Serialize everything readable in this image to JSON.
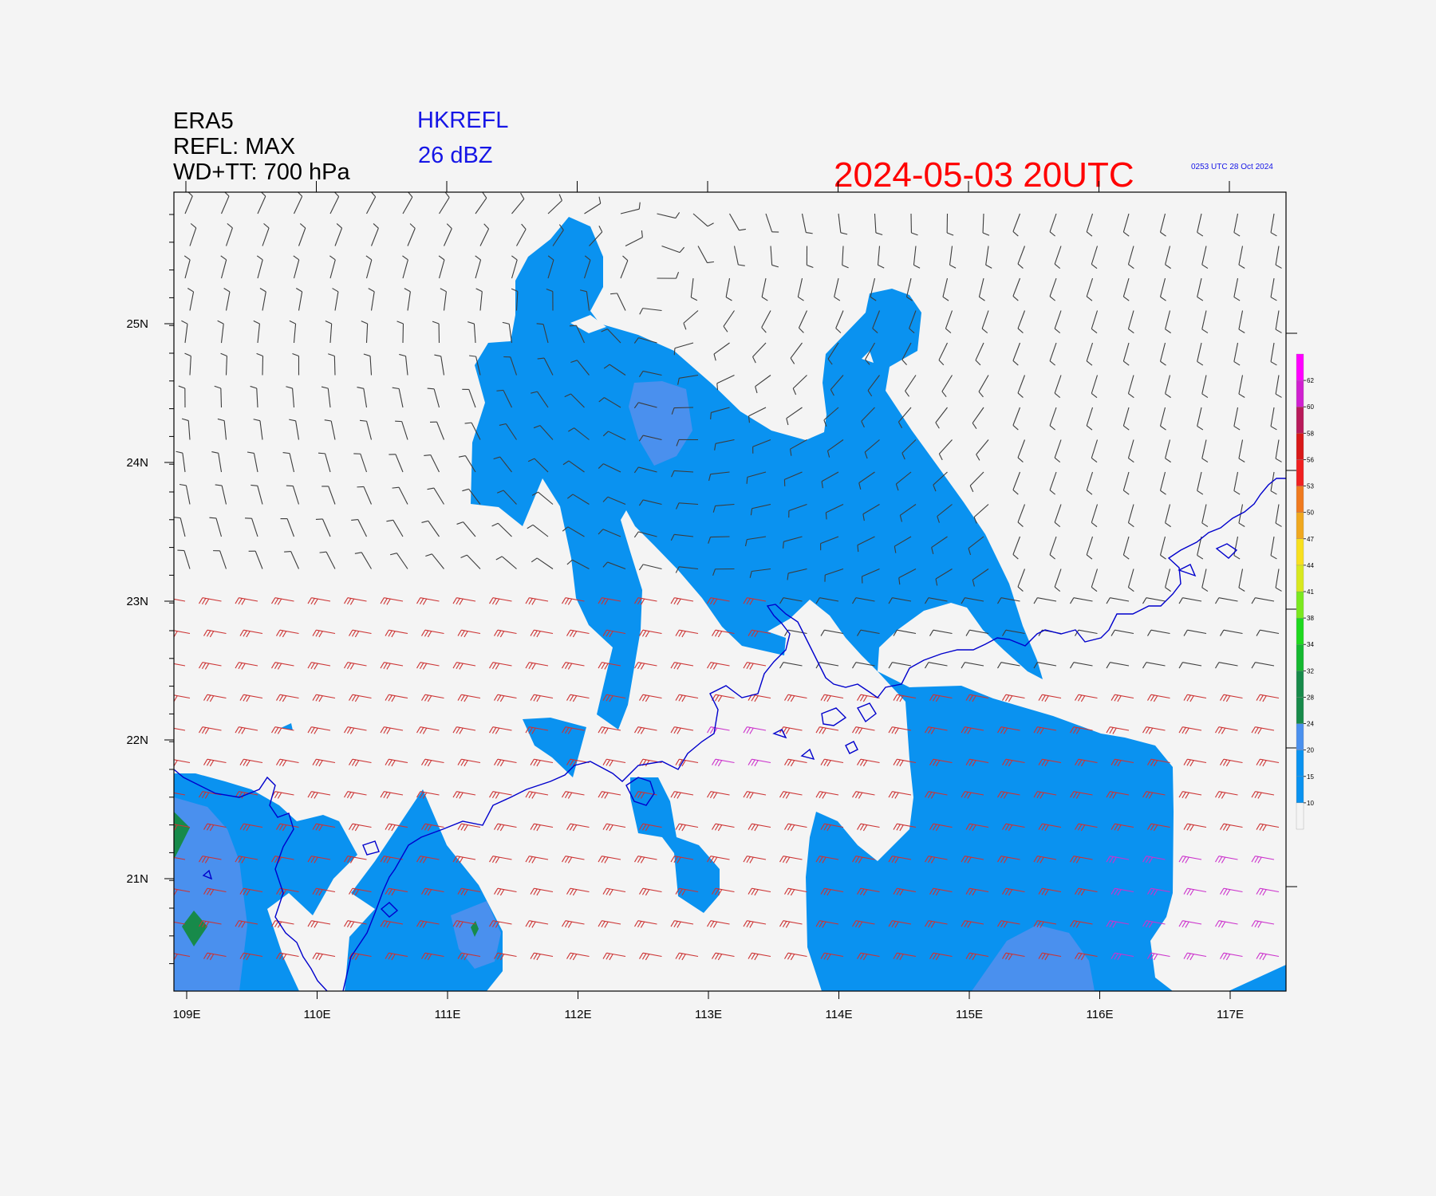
{
  "header": {
    "model": "ERA5",
    "refl_field": "REFL: MAX",
    "wind_field": "WD+TT: 700 hPa",
    "product": "HKREFL",
    "threshold": "26 dBZ",
    "valid_time": "2024-05-03  20UTC",
    "generated": "0253 UTC 28 Oct 2024"
  },
  "map": {
    "x_ticks": [
      "109E",
      "110E",
      "111E",
      "112E",
      "113E",
      "114E",
      "115E",
      "116E",
      "117E"
    ],
    "y_ticks": [
      "25N",
      "24N",
      "23N",
      "22N",
      "21N"
    ],
    "coastline_color": "#0000cc",
    "barb_colors": {
      "default": "#3c3c3c",
      "warm": "#cc3333",
      "hot": "#cc33cc"
    }
  },
  "colorbar": {
    "labels": [
      "10",
      "15",
      "20",
      "24",
      "28",
      "32",
      "34",
      "38",
      "41",
      "44",
      "47",
      "50",
      "53",
      "56",
      "58",
      "60",
      "62"
    ],
    "colors": [
      "#f4f4f4",
      "#0a92f0",
      "#0a92f0",
      "#4a90ee",
      "#178a4a",
      "#178a4a",
      "#15b830",
      "#1ed81e",
      "#7be81e",
      "#d8e81e",
      "#f8e01e",
      "#f0a81e",
      "#f07a1e",
      "#f02020",
      "#d81818",
      "#b81a5a",
      "#d020d0",
      "#ff00ff"
    ]
  }
}
